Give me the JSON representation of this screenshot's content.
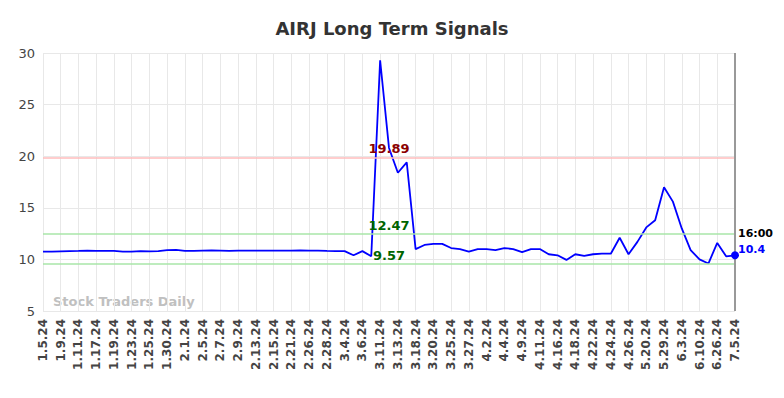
{
  "chart_data": {
    "type": "line",
    "title": "AIRJ Long Term Signals",
    "watermark": "Stock Traders Daily",
    "last_label": "16:00",
    "categories": [
      "1.5.24",
      null,
      "1.9.24",
      null,
      "1.11.24",
      null,
      "1.17.24",
      null,
      "1.19.24",
      null,
      "1.23.24",
      null,
      "1.25.24",
      null,
      "1.30.24",
      null,
      "2.1.24",
      null,
      "2.5.24",
      null,
      "2.7.24",
      null,
      "2.9.24",
      null,
      "2.13.24",
      null,
      "2.15.24",
      null,
      "2.21.24",
      null,
      "2.26.24",
      null,
      "2.28.24",
      null,
      "3.4.24",
      null,
      "3.6.24",
      null,
      "3.11.24",
      null,
      "3.13.24",
      null,
      "3.18.24",
      null,
      "3.20.24",
      null,
      "3.25.24",
      null,
      "3.27.24",
      null,
      "4.2.24",
      null,
      "4.4.24",
      null,
      "4.9.24",
      null,
      "4.11.24",
      null,
      "4.16.24",
      null,
      "4.18.24",
      null,
      "4.22.24",
      null,
      "4.24.24",
      null,
      "4.26.24",
      null,
      "5.20.24",
      null,
      "5.29.24",
      null,
      "6.3.24",
      null,
      "6.10.24",
      null,
      "6.26.24",
      null,
      "7.5.24"
    ],
    "values": [
      10.75,
      10.75,
      10.78,
      10.8,
      10.82,
      10.85,
      10.83,
      10.82,
      10.82,
      10.75,
      10.75,
      10.8,
      10.78,
      10.8,
      10.9,
      10.92,
      10.82,
      10.82,
      10.85,
      10.88,
      10.85,
      10.82,
      10.85,
      10.85,
      10.85,
      10.85,
      10.85,
      10.85,
      10.85,
      10.87,
      10.85,
      10.85,
      10.82,
      10.8,
      10.8,
      10.4,
      10.8,
      10.3,
      29.3,
      20.8,
      18.4,
      19.4,
      11.0,
      11.4,
      11.5,
      11.5,
      11.1,
      11.0,
      10.75,
      11.0,
      11.0,
      10.9,
      11.1,
      11.0,
      10.7,
      11.0,
      11.0,
      10.5,
      10.4,
      9.95,
      10.5,
      10.35,
      10.5,
      10.55,
      10.55,
      12.1,
      10.5,
      11.7,
      13.1,
      13.8,
      17.0,
      15.6,
      13.0,
      10.9,
      10.0,
      9.6,
      11.6,
      10.3,
      10.4
    ],
    "color": "#0000ff",
    "ylim": [
      5,
      30
    ],
    "yticks": [
      5,
      10,
      15,
      20,
      25,
      30
    ],
    "grid": true,
    "annotations": [
      {
        "text": "19.89",
        "value": 19.89,
        "color": "#8b0000"
      },
      {
        "text": "12.47",
        "value": 12.47,
        "color": "#006400"
      },
      {
        "text": "9.57",
        "value": 9.57,
        "color": "#006400"
      }
    ]
  }
}
